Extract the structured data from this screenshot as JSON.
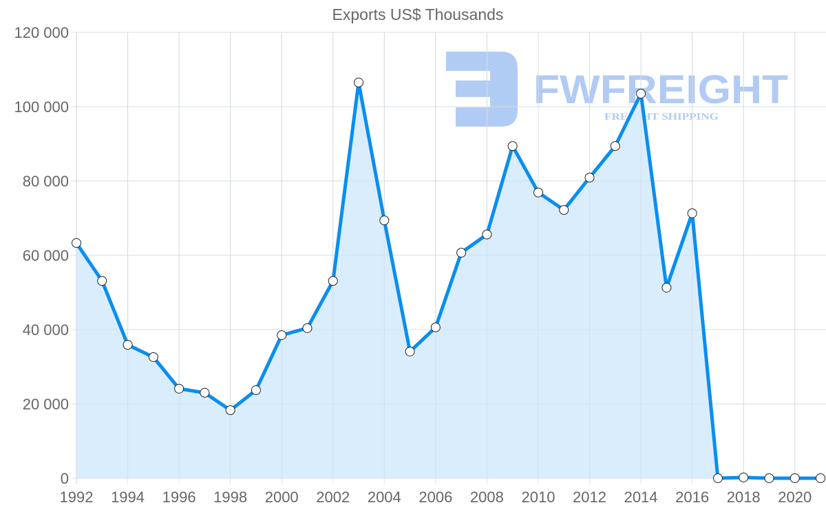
{
  "chart_data": {
    "type": "area",
    "title": "Exports US$ Thousands",
    "xlabel": "",
    "ylabel": "",
    "x": [
      1992,
      1993,
      1994,
      1995,
      1996,
      1997,
      1998,
      1999,
      2000,
      2001,
      2002,
      2003,
      2004,
      2005,
      2006,
      2007,
      2008,
      2009,
      2010,
      2011,
      2012,
      2013,
      2014,
      2015,
      2016,
      2017,
      2018,
      2019,
      2020,
      2021
    ],
    "series": [
      {
        "name": "Exports US$ Thousands",
        "values": [
          63300,
          53100,
          35900,
          32600,
          24100,
          23000,
          18300,
          23700,
          38500,
          40400,
          53100,
          106500,
          69400,
          34100,
          40600,
          60700,
          65600,
          89400,
          76900,
          72200,
          80900,
          89400,
          103500,
          51300,
          71300,
          0,
          200,
          0,
          0,
          0
        ],
        "line_color": "#0a8ef0",
        "fill_color": "#d8ecfc"
      }
    ],
    "ylim": [
      0,
      120000
    ],
    "xlim": [
      1992,
      2021
    ],
    "y_ticks": [
      "0",
      "20 000",
      "40 000",
      "60 000",
      "80 000",
      "100 000",
      "120 000"
    ],
    "y_tick_values": [
      0,
      20000,
      40000,
      60000,
      80000,
      100000,
      120000
    ],
    "x_ticks": [
      "1992",
      "1994",
      "1996",
      "1998",
      "2000",
      "2002",
      "2004",
      "2006",
      "2008",
      "2010",
      "2012",
      "2014",
      "2016",
      "2018",
      "2020"
    ],
    "grid": true,
    "legend": "none"
  },
  "watermark": {
    "brand": "FWFREIGHT",
    "tagline": "FREIGHT SHIPPING",
    "color": "#a9c6f3"
  }
}
